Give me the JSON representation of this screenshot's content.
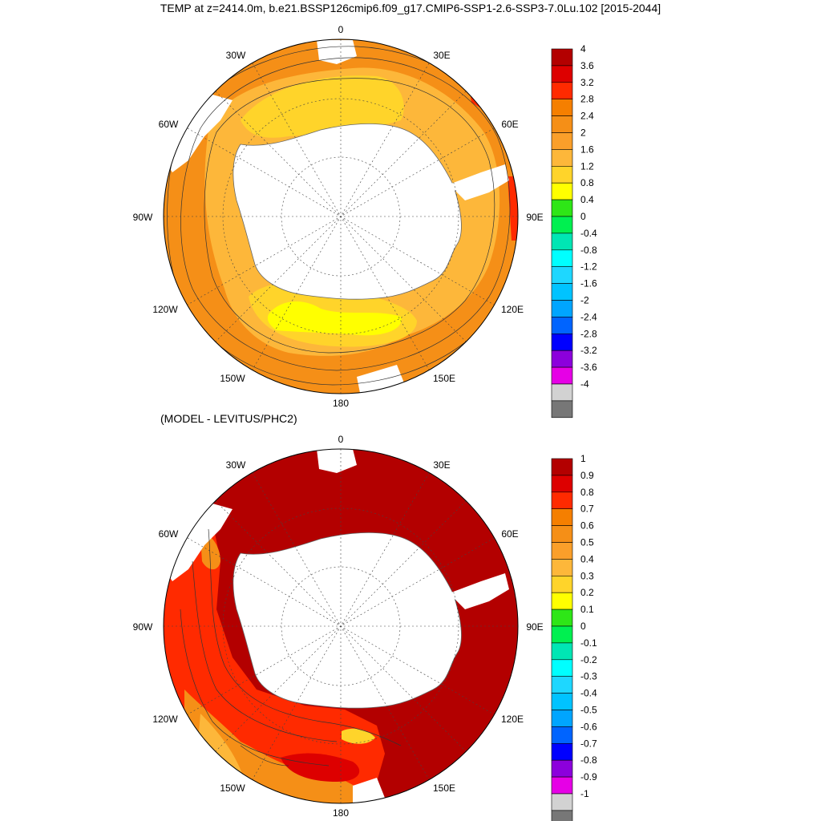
{
  "title": "TEMP at z=2414.0m, b.e21.BSSP126cmip6.f09_g17.CMIP6-SSP1-2.6-SSP3-7.0Lu.102 [2015-2044]",
  "diff_title": "(MODEL - LEVITUS/PHC2)",
  "longitude_labels": [
    "0",
    "30E",
    "60E",
    "90E",
    "120E",
    "150E",
    "180",
    "150W",
    "120W",
    "90W",
    "60W",
    "30W"
  ],
  "top_colorbar": {
    "labels": [
      "4",
      "3.6",
      "3.2",
      "2.8",
      "2.4",
      "2",
      "1.6",
      "1.2",
      "0.8",
      "0.4",
      "0",
      "-0.4",
      "-0.8",
      "-1.2",
      "-1.6",
      "-2",
      "-2.4",
      "-2.8",
      "-3.2",
      "-3.6",
      "-4"
    ],
    "colors": [
      "#b30000",
      "#dd0000",
      "#ff2a00",
      "#f57f00",
      "#f58f17",
      "#fa9f2a",
      "#fdb73a",
      "#ffd42a",
      "#ffff00",
      "#2ee617",
      "#00f050",
      "#00e6b4",
      "#00ffff",
      "#1ed7ff",
      "#00c3ff",
      "#00a5ff",
      "#0064ff",
      "#0000ff",
      "#8c00dc",
      "#e600e6",
      "#d2d2d2",
      "#777777"
    ]
  },
  "bottom_colorbar": {
    "labels": [
      "1",
      "0.9",
      "0.8",
      "0.7",
      "0.6",
      "0.5",
      "0.4",
      "0.3",
      "0.2",
      "0.1",
      "0",
      "-0.1",
      "-0.2",
      "-0.3",
      "-0.4",
      "-0.5",
      "-0.6",
      "-0.7",
      "-0.8",
      "-0.9",
      "-1"
    ],
    "colors": [
      "#b30000",
      "#dd0000",
      "#ff2a00",
      "#f57f00",
      "#f58f17",
      "#fa9f2a",
      "#fdb73a",
      "#ffd42a",
      "#ffff00",
      "#2ee617",
      "#00f050",
      "#00e6b4",
      "#00ffff",
      "#1ed7ff",
      "#00c3ff",
      "#00a5ff",
      "#0064ff",
      "#0000ff",
      "#8c00dc",
      "#e600e6",
      "#d2d2d2",
      "#777777"
    ]
  },
  "colors": {
    "land": "#ffffff",
    "warm_dark_red": "#b30000",
    "orange": "#f58f17",
    "light_orange": "#fdb73a",
    "yellow": "#ffd42a",
    "bright_yellow": "#ffff00",
    "red": "#ff2a00"
  }
}
